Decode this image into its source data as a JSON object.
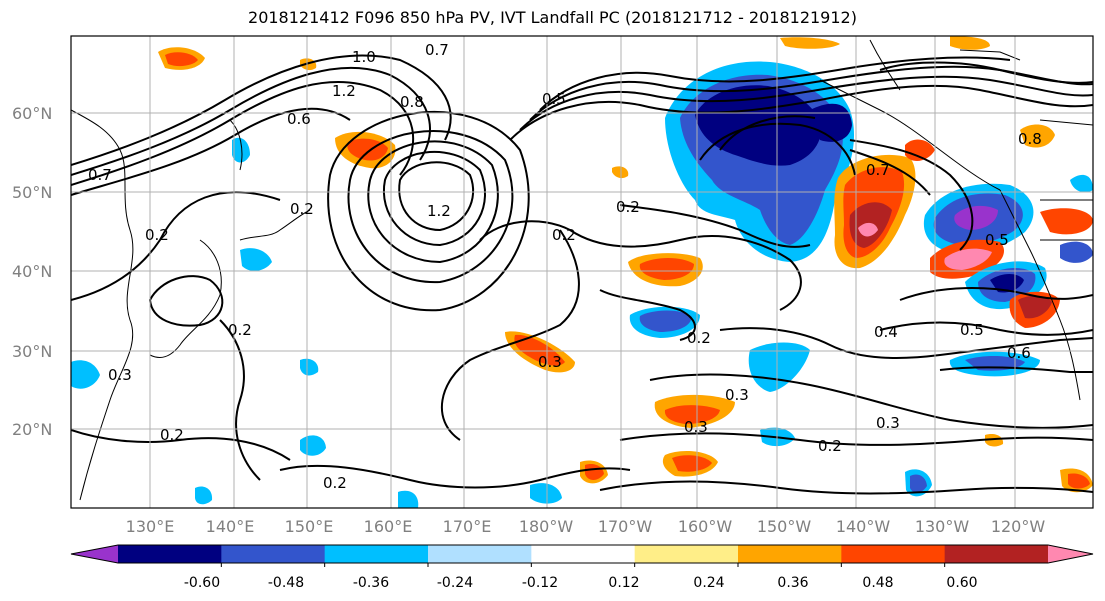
{
  "title": "2018121412 F096 850 hPa PV, IVT Landfall PC (2018121712 - 2018121912)",
  "lat_labels": [
    "60°N",
    "50°N",
    "40°N",
    "30°N",
    "20°N"
  ],
  "lon_labels": [
    "130°E",
    "140°E",
    "150°E",
    "160°E",
    "170°E",
    "180°W",
    "170°W",
    "160°W",
    "150°W",
    "140°W",
    "130°W",
    "120°W"
  ],
  "colorbar": {
    "colors": [
      "#9933cc",
      "#000080",
      "#3355cc",
      "#00bfff",
      "#b0e0ff",
      "#ffffff",
      "#ffee88",
      "#ffa500",
      "#ff4500",
      "#b22222",
      "#ff88b0"
    ],
    "tick_labels": [
      "-0.60",
      "-0.48",
      "-0.36",
      "-0.24",
      "-0.12",
      "0.12",
      "0.24",
      "0.36",
      "0.48",
      "0.60"
    ]
  },
  "contour_labels": [
    "1.0",
    "0.7",
    "1.2",
    "0.8",
    "0.7",
    "0.6",
    "0.5",
    "0.2",
    "1.2",
    "0.2",
    "0.2",
    "0.3",
    "0.2",
    "0.3",
    "0.3",
    "0.2",
    "0.2",
    "0.4",
    "0.5",
    "0.6",
    "0.3",
    "0.2",
    "0.7",
    "0.8",
    "0.2",
    "0.5",
    "0.2",
    "0.3"
  ]
}
